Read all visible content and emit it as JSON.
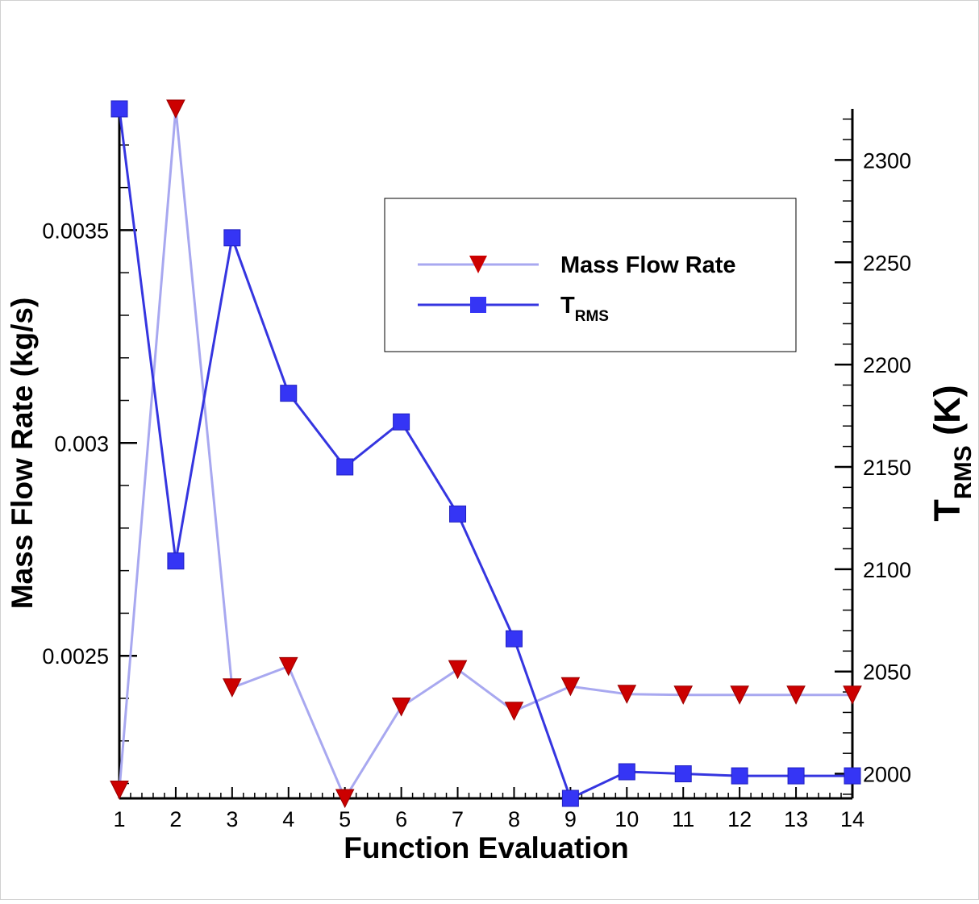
{
  "chart_data": {
    "type": "line",
    "xlabel": "Function Evaluation",
    "x": [
      1,
      2,
      3,
      4,
      5,
      6,
      7,
      8,
      9,
      10,
      11,
      12,
      13,
      14
    ],
    "xlim": [
      1,
      14
    ],
    "y1": {
      "label": "Mass Flow Rate (kg/s)",
      "ticks": [
        "0.0025",
        "0.003",
        "0.0035"
      ],
      "lim": [
        0.002165,
        0.003785
      ]
    },
    "y2": {
      "label_main": "T",
      "label_sub": "RMS",
      "label_unit": " (K)",
      "ticks": [
        "2000",
        "2050",
        "2100",
        "2150",
        "2200",
        "2250",
        "2300"
      ],
      "lim": [
        1988,
        2325
      ]
    },
    "series": [
      {
        "name": "Mass Flow Rate",
        "axis": "left",
        "marker": "triangle-down",
        "line_color": "#a8a8f0",
        "marker_color": "#cc0000",
        "values": [
          0.002185,
          0.003785,
          0.002425,
          0.002475,
          0.002165,
          0.00238,
          0.002468,
          0.00237,
          0.002428,
          0.00241,
          0.002408,
          0.002408,
          0.002408,
          0.002408
        ]
      },
      {
        "name_main": "T",
        "name_sub": "RMS",
        "axis": "right",
        "marker": "square",
        "line_color": "#3535e0",
        "marker_color": "#3535f5",
        "values": [
          2325,
          2104,
          2262,
          2186,
          2150,
          2172,
          2127,
          2066,
          1988,
          2001,
          2000,
          1999,
          1999,
          1999
        ]
      }
    ],
    "legend": {
      "position": "top-right",
      "entries": [
        {
          "label": "Mass Flow Rate"
        },
        {
          "label_main": "T",
          "label_sub": "RMS"
        }
      ]
    }
  }
}
